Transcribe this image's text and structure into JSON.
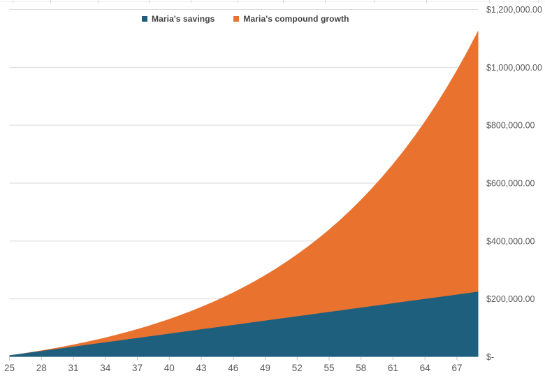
{
  "legend": {
    "items": [
      {
        "label": "Maria's savings",
        "color": "#1F5F7E"
      },
      {
        "label": "Maria's compound growth",
        "color": "#E8722E"
      }
    ]
  },
  "chart_data": {
    "type": "area",
    "stacked": true,
    "title": "",
    "xlabel": "",
    "ylabel": "",
    "grid": "horizontal",
    "legend_position": "top-center",
    "x": [
      25,
      26,
      27,
      28,
      29,
      30,
      31,
      32,
      33,
      34,
      35,
      36,
      37,
      38,
      39,
      40,
      41,
      42,
      43,
      44,
      45,
      46,
      47,
      48,
      49,
      50,
      51,
      52,
      53,
      54,
      55,
      56,
      57,
      58,
      59,
      60,
      61,
      62,
      63,
      64,
      65,
      66,
      67,
      68,
      69
    ],
    "series": [
      {
        "name": "Maria's savings",
        "color": "#1F5F7E",
        "values": [
          5000,
          10000,
          15000,
          20000,
          25000,
          30000,
          35000,
          40000,
          45000,
          50000,
          55000,
          60000,
          65000,
          70000,
          75000,
          80000,
          85000,
          90000,
          95000,
          100000,
          105000,
          110000,
          115000,
          120000,
          125000,
          130000,
          135000,
          140000,
          145000,
          150000,
          155000,
          160000,
          165000,
          170000,
          175000,
          180000,
          185000,
          190000,
          195000,
          200000,
          205000,
          210000,
          215000,
          220000,
          225000
        ]
      },
      {
        "name": "Maria's compound growth",
        "color": "#E8722E",
        "values": [
          0,
          310,
          949,
          1938,
          3298,
          5053,
          7226,
          9844,
          12934,
          16526,
          20651,
          25341,
          30633,
          36562,
          43168,
          50495,
          58585,
          67488,
          77252,
          87932,
          99584,
          112268,
          126048,
          140993,
          157175,
          174670,
          193559,
          213930,
          235873,
          259488,
          284876,
          312149,
          341421,
          372820,
          406474,
          442526,
          481122,
          522422,
          566592,
          613811,
          664267,
          718162,
          775708,
          837132,
          902674
        ]
      }
    ],
    "ylim": [
      0,
      1200000
    ],
    "xlim": [
      25,
      69
    ],
    "y_ticks": [
      {
        "value": 0,
        "label": "$-"
      },
      {
        "value": 200000,
        "label": "$200,000.00"
      },
      {
        "value": 400000,
        "label": "$400,000.00"
      },
      {
        "value": 600000,
        "label": "$600,000.00"
      },
      {
        "value": 800000,
        "label": "$800,000.00"
      },
      {
        "value": 1000000,
        "label": "$1,000,000.00"
      },
      {
        "value": 1200000,
        "label": "$1,200,000.00"
      }
    ],
    "x_ticks": [
      {
        "value": 25,
        "label": "25"
      },
      {
        "value": 28,
        "label": "28"
      },
      {
        "value": 31,
        "label": "31"
      },
      {
        "value": 34,
        "label": "34"
      },
      {
        "value": 37,
        "label": "37"
      },
      {
        "value": 40,
        "label": "40"
      },
      {
        "value": 43,
        "label": "43"
      },
      {
        "value": 46,
        "label": "46"
      },
      {
        "value": 49,
        "label": "49"
      },
      {
        "value": 52,
        "label": "52"
      },
      {
        "value": 55,
        "label": "55"
      },
      {
        "value": 58,
        "label": "58"
      },
      {
        "value": 61,
        "label": "61"
      },
      {
        "value": 64,
        "label": "64"
      },
      {
        "value": 67,
        "label": "67"
      }
    ],
    "colors": {
      "gridline": "#D9D9D9",
      "axis_text": "#595959",
      "tick_mark": "#BFBFBF",
      "edge_artifact_line": "#EFEFEF",
      "edge_artifact_tick": "#D9D9D9"
    }
  }
}
